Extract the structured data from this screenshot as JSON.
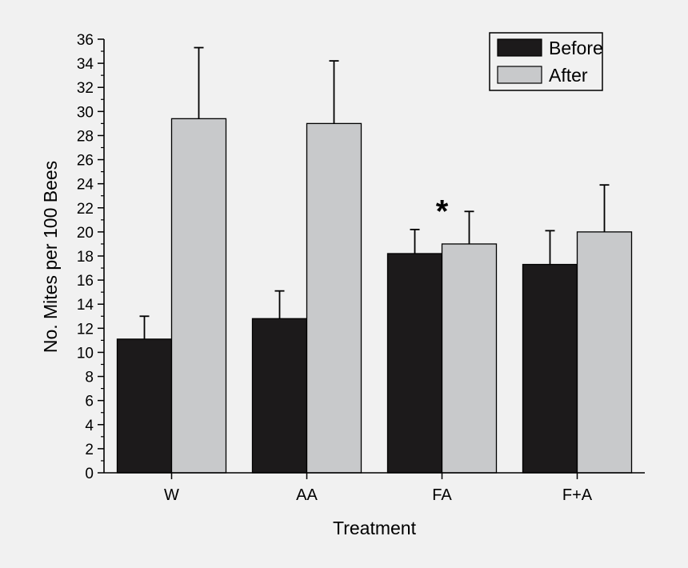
{
  "chart_data": {
    "type": "bar",
    "title": "",
    "xlabel": "Treatment",
    "ylabel": "No. Mites per 100 Bees",
    "ylim": [
      0,
      36
    ],
    "y_major_step": 2,
    "categories": [
      "W",
      "AA",
      "FA",
      "F+A"
    ],
    "series": [
      {
        "name": "Before",
        "color": "#1c1a1b",
        "values": [
          11.1,
          12.8,
          18.2,
          17.3
        ],
        "errors": [
          1.9,
          2.3,
          2.0,
          2.8
        ]
      },
      {
        "name": "After",
        "color": "#c8c9cb",
        "values": [
          29.4,
          29.0,
          19.0,
          20.0
        ],
        "errors": [
          5.9,
          5.2,
          2.7,
          3.9
        ]
      }
    ],
    "legend": {
      "position": "top-right",
      "entries": [
        "Before",
        "After"
      ]
    },
    "annotations": [
      {
        "text": "*",
        "category": "FA",
        "y": 22.3
      }
    ]
  }
}
